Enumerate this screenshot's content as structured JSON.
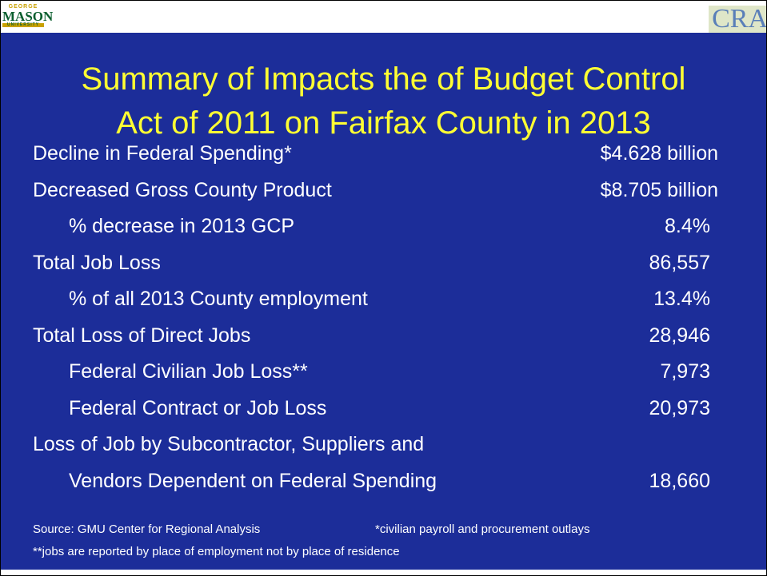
{
  "logos": {
    "left": {
      "top": "GEORGE",
      "main": "MASON",
      "bottom": "UNIVERSITY"
    },
    "right": "CRA"
  },
  "title": [
    "Summary of Impacts the of Budget Control",
    "Act of 2011 on  Fairfax County in 2013"
  ],
  "rows": [
    {
      "label": "Decline in Federal Spending*",
      "value": "$4.628 billion"
    },
    {
      "label": "Decreased Gross County Product",
      "value": "$8.705 billion"
    },
    {
      "label": "% decrease in 2013 GCP",
      "value": "8.4%"
    },
    {
      "label": "Total Job Loss",
      "value": "86,557"
    },
    {
      "label": "% of all 2013 County employment",
      "value": "13.4%"
    },
    {
      "label": "Total Loss of Direct Jobs",
      "value": "28,946"
    },
    {
      "label": "Federal Civilian Job Loss**",
      "value": "7,973"
    },
    {
      "label": "Federal Contract or Job Loss",
      "value": "20,973"
    },
    {
      "label": "Loss of  Job by Subcontractor, Suppliers and"
    },
    {
      "label": "Vendors  Dependent on Federal Spending",
      "value": "18,660"
    }
  ],
  "footer": {
    "source": "Source:  GMU Center for Regional Analysis",
    "note1": "*civilian payroll and procurement outlays",
    "note2": "**jobs are reported by place of employment not by place of residence"
  }
}
